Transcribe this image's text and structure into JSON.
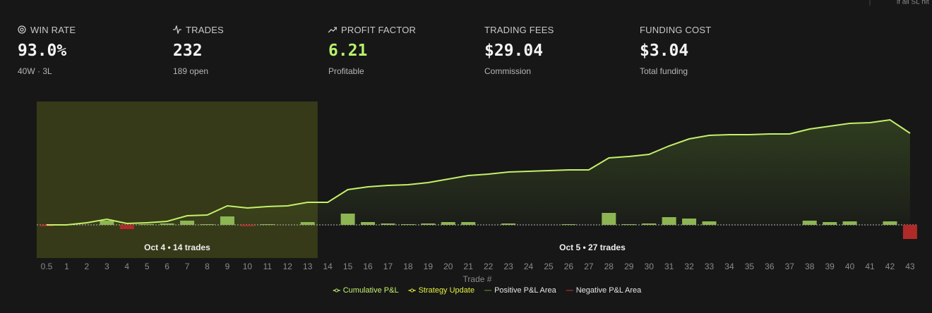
{
  "corner_note": "if all SL hit",
  "stats": [
    {
      "label": "WIN RATE",
      "value": "93.0%",
      "sub": "40W · 3L"
    },
    {
      "label": "TRADES",
      "value": "232",
      "sub": "189 open"
    },
    {
      "label": "PROFIT FACTOR",
      "value": "6.21",
      "sub": "Profitable"
    },
    {
      "label": "TRADING FEES",
      "value": "$29.04",
      "sub": "Commission"
    },
    {
      "label": "FUNDING COST",
      "value": "$3.04",
      "sub": "Total funding"
    }
  ],
  "chart_data": {
    "type": "combo",
    "x_label": "Trade #",
    "categories": [
      0.5,
      1,
      2,
      3,
      4,
      5,
      6,
      7,
      8,
      9,
      10,
      11,
      12,
      13,
      14,
      15,
      16,
      17,
      18,
      19,
      20,
      21,
      22,
      23,
      24,
      25,
      26,
      27,
      28,
      29,
      30,
      31,
      32,
      33,
      34,
      35,
      36,
      37,
      38,
      39,
      40,
      41,
      42,
      43
    ],
    "series": [
      {
        "name": "Cumulative P&L",
        "color": "#c4f06a",
        "values": [
          0,
          0,
          3,
          8,
          2,
          3,
          5,
          13,
          14,
          27,
          24,
          26,
          27,
          32,
          32,
          50,
          54,
          56,
          57,
          60,
          65,
          70,
          72,
          75,
          76,
          77,
          78,
          78,
          95,
          97,
          100,
          112,
          122,
          127,
          128,
          128,
          129,
          129,
          136,
          140,
          144,
          145,
          149,
          130
        ]
      },
      {
        "name": "Strategy Update",
        "color": "#e3f23c"
      },
      {
        "name": "Positive P&L Area",
        "color": "#4d6b2a"
      },
      {
        "name": "Negative P&L Area",
        "color": "#8e2a26"
      }
    ],
    "trade_pnl": {
      "values": [
        -2,
        0,
        0,
        6,
        -6,
        1,
        2,
        6,
        1,
        12,
        -2,
        1,
        0,
        4,
        0,
        16,
        4,
        2,
        1,
        2,
        4,
        4,
        0,
        2,
        0,
        0,
        1,
        0,
        17,
        1,
        2,
        11,
        9,
        5,
        0,
        0,
        0,
        0,
        6,
        4,
        5,
        0,
        5,
        -20
      ],
      "positive_color": "#8db553",
      "negative_color": "#b02a28"
    },
    "annotations": [
      "Oct 4 • 14 trades",
      "Oct 5 • 27 trades"
    ],
    "highlight_color": "#363a18",
    "ylim": [
      -47,
      175
    ],
    "grid": false
  }
}
